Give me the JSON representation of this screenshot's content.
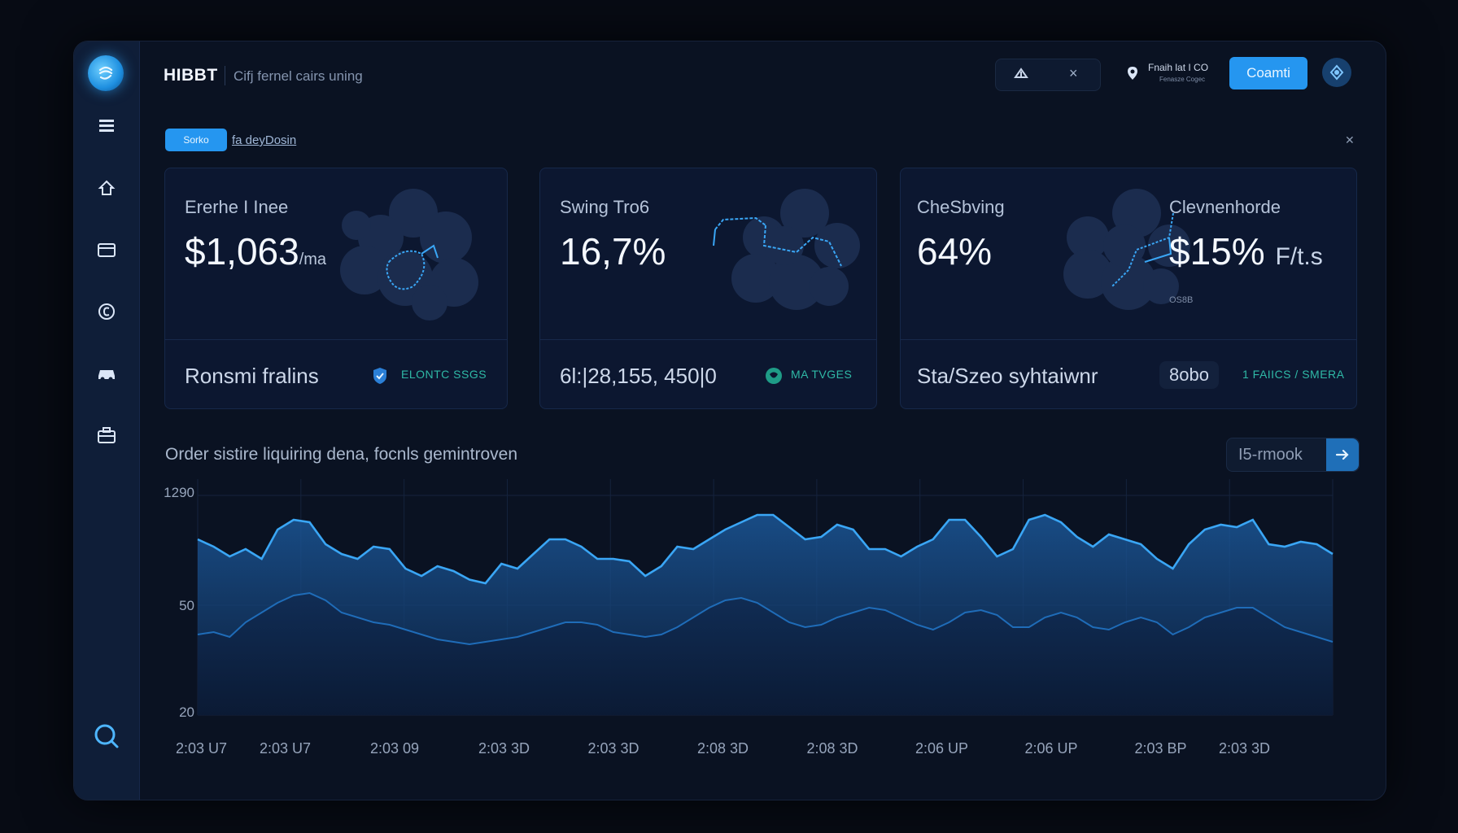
{
  "app": {
    "title": "HIBBT",
    "subtitle": "Cifj fernel cairs uning"
  },
  "topbar": {
    "user_line1": "Fnaih lat I CO",
    "user_line2": "Fenasze Cogec",
    "connect_label": "Coamti"
  },
  "filter": {
    "tag_label": "Sorko",
    "link_label": "fa deyDosin"
  },
  "cards": [
    {
      "label": "Ererhe I Inee",
      "value": "$1,063",
      "unit": "/ma",
      "footer": "Ronsmi fralins",
      "badge": "ELONTC SSGS"
    },
    {
      "label": "Swing Tro6",
      "value": "16,7%",
      "footer": "6l:|28,155, 450|0",
      "badge": "MA TVGES"
    },
    {
      "label": "CheSbving",
      "value": "64%",
      "label2": "Clevnenhorde",
      "value2": "$15%",
      "unit2": "F/t.s",
      "sub2": "OS8B",
      "footer": "Sta/Szeo syhtaiwnr",
      "chip": "8obo",
      "badge": "1 FAIICS / SMERA"
    }
  ],
  "section": {
    "title": "Order sistire liquiring dena, focnls gemintroven",
    "search_value": "I5-rmook"
  },
  "colors": {
    "accent": "#2596f0",
    "line": "#3aa6f5",
    "badge_green": "#2fb9a6"
  },
  "chart_data": {
    "type": "area",
    "y_tick_labels": [
      "1290",
      "50",
      "20"
    ],
    "x_tick_labels": [
      "2:03 U7",
      "2:03 U7",
      "2:03 09",
      "2:03 3D",
      "2:03 3D",
      "2:08 3D",
      "2:08 3D",
      "2:06 UP",
      "2:06 UP",
      "2:03 BP",
      "2:03 3D"
    ],
    "ylim": [
      20,
      1290
    ],
    "grid": true,
    "series": [
      {
        "values": [
          720,
          690,
          650,
          680,
          640,
          760,
          800,
          790,
          700,
          660,
          640,
          690,
          680,
          600,
          570,
          610,
          590,
          555,
          540,
          620,
          600,
          660,
          720,
          720,
          690,
          640,
          640,
          630,
          570,
          610,
          690,
          680,
          720,
          760,
          790,
          820,
          820,
          770,
          720,
          730,
          780,
          760,
          680,
          680,
          650,
          690,
          720,
          800,
          800,
          730,
          650,
          680,
          800,
          820,
          790,
          730,
          690,
          740,
          720,
          700,
          640,
          600,
          700,
          760,
          780,
          770,
          800,
          700,
          690,
          710,
          700,
          660
        ]
      },
      {
        "values": [
          330,
          340,
          320,
          380,
          420,
          460,
          490,
          500,
          470,
          420,
          400,
          380,
          370,
          350,
          330,
          310,
          300,
          290,
          300,
          310,
          320,
          340,
          360,
          380,
          380,
          370,
          340,
          330,
          320,
          330,
          360,
          400,
          440,
          470,
          480,
          460,
          420,
          380,
          360,
          370,
          400,
          420,
          440,
          430,
          400,
          370,
          350,
          380,
          420,
          430,
          410,
          360,
          360,
          400,
          420,
          400,
          360,
          350,
          380,
          400,
          380,
          330,
          360,
          400,
          420,
          440,
          440,
          400,
          360,
          340,
          320,
          300
        ]
      }
    ]
  }
}
